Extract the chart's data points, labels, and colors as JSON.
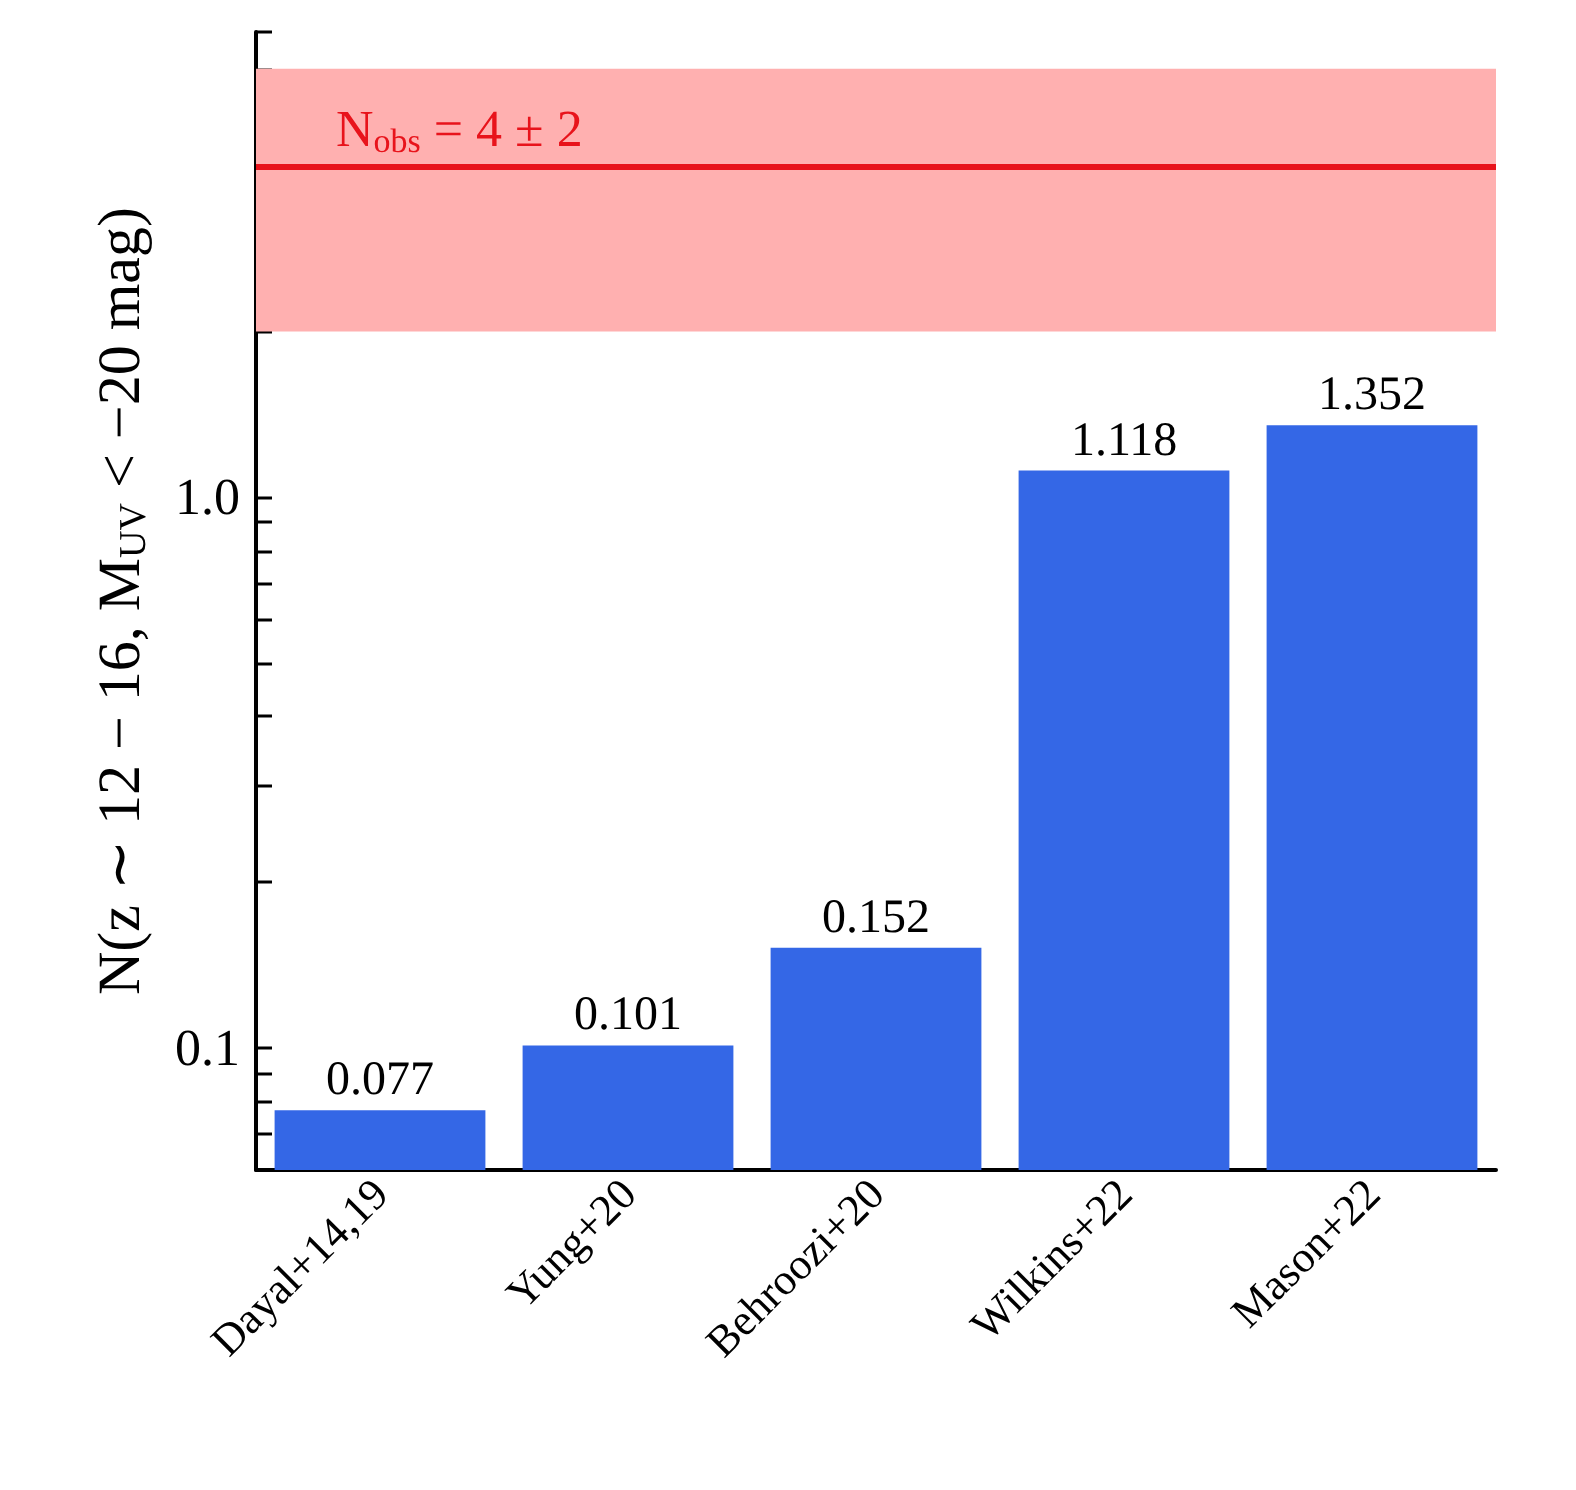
{
  "chart_data": {
    "type": "bar",
    "ylabel": "N(z ∼ 12 − 16, M$_{UV}$ < −20 mag)",
    "categories": [
      "Dayal+14,19",
      "Yung+20",
      "Behroozi+20",
      "Wilkins+22",
      "Mason+22"
    ],
    "values": [
      0.077,
      0.101,
      0.152,
      1.118,
      1.352
    ],
    "color": "#3467e6",
    "data_labels": true,
    "log": "y",
    "ylim": [
      0.06,
      7
    ],
    "yticks": [
      {
        "value": 0.06,
        "label": null
      },
      {
        "value": 0.07,
        "label": null
      },
      {
        "value": 0.08,
        "label": null
      },
      {
        "value": 0.09,
        "label": null
      },
      {
        "value": 0.1,
        "label": "0.1"
      },
      {
        "value": 0.2,
        "label": null
      },
      {
        "value": 0.3,
        "label": null
      },
      {
        "value": 0.4,
        "label": null
      },
      {
        "value": 0.5,
        "label": null
      },
      {
        "value": 0.6,
        "label": null
      },
      {
        "value": 0.7,
        "label": null
      },
      {
        "value": 0.8,
        "label": null
      },
      {
        "value": 0.9,
        "label": null
      },
      {
        "value": 1,
        "label": "1.0"
      },
      {
        "value": 2,
        "label": null
      },
      {
        "value": 3,
        "label": null
      },
      {
        "value": 4,
        "label": null
      },
      {
        "value": 5,
        "label": null
      },
      {
        "value": 6,
        "label": null
      },
      {
        "value": 7,
        "label": null
      }
    ],
    "ref_lines": [
      {
        "axis": "y",
        "value": 4,
        "label": "N$_{obs}$ = 4 ± 2",
        "color": "#e8131b"
      }
    ],
    "bands": [
      {
        "axis": "y",
        "from": 2,
        "to": 6,
        "color": "#ffb0b0"
      }
    ],
    "grid": false
  }
}
